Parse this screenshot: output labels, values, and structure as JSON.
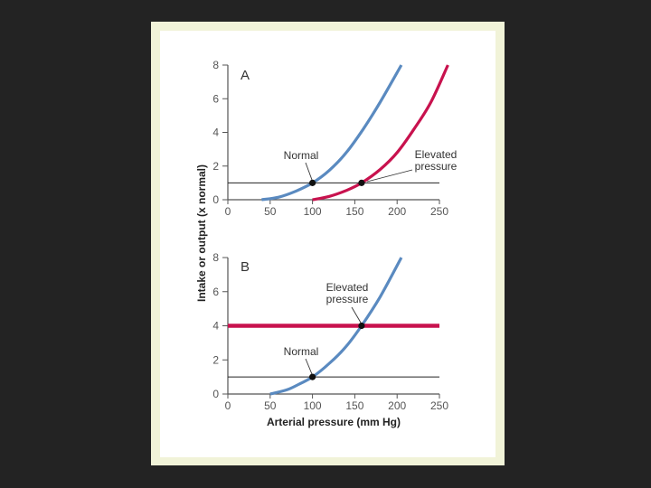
{
  "colors": {
    "slide_background": "#232323",
    "frame": "#f1f3d8",
    "normal_curve": "#5a8ac0",
    "elevated_curve": "#c8124e",
    "axis": "#555555"
  },
  "chart_data": {
    "type": "line",
    "ylabel": "Intake or output (x normal)",
    "xlabel": "Arterial pressure (mm Hg)",
    "panels": [
      {
        "id": "A",
        "label": "A",
        "xlim": [
          0,
          250
        ],
        "ylim": [
          0,
          8
        ],
        "x_ticks": [
          "0",
          "50",
          "100",
          "150",
          "200",
          "250"
        ],
        "y_ticks": [
          "0",
          "2",
          "4",
          "6",
          "8"
        ],
        "series": [
          {
            "name": "Normal output curve",
            "x": [
              40,
              60,
              80,
              100,
              120,
              140,
              160,
              180,
              205
            ],
            "y": [
              0,
              0.15,
              0.5,
              1.0,
              1.75,
              2.8,
              4.2,
              5.8,
              8.0
            ],
            "color": "#5a8ac0"
          },
          {
            "name": "Elevated pressure output curve",
            "x": [
              100,
              120,
              140,
              158,
              180,
              200,
              220,
              240,
              260
            ],
            "y": [
              0,
              0.2,
              0.55,
              1.0,
              1.8,
              2.8,
              4.2,
              5.8,
              8.0
            ],
            "color": "#c8124e"
          },
          {
            "name": "Intake level",
            "x": [
              0,
              250
            ],
            "y": [
              1,
              1
            ],
            "color": "#222222"
          }
        ],
        "points": [
          {
            "name": "normal-equilibrium",
            "x": 100,
            "y": 1
          },
          {
            "name": "elevated-equilibrium",
            "x": 158,
            "y": 1
          }
        ],
        "annotations": [
          {
            "name": "normal",
            "lines": [
              "Normal"
            ]
          },
          {
            "name": "elevated",
            "lines": [
              "Elevated",
              "pressure"
            ]
          }
        ]
      },
      {
        "id": "B",
        "label": "B",
        "xlim": [
          0,
          250
        ],
        "ylim": [
          0,
          8
        ],
        "x_ticks": [
          "0",
          "50",
          "100",
          "150",
          "200",
          "250"
        ],
        "y_ticks": [
          "0",
          "2",
          "4",
          "6",
          "8"
        ],
        "series": [
          {
            "name": "Output curve",
            "x": [
              50,
              70,
              85,
              100,
              120,
              140,
              158,
              180,
              205
            ],
            "y": [
              0,
              0.25,
              0.6,
              1.0,
              1.8,
              2.8,
              4.0,
              5.7,
              8.0
            ],
            "color": "#5a8ac0"
          },
          {
            "name": "Normal intake",
            "x": [
              0,
              250
            ],
            "y": [
              1,
              1
            ],
            "color": "#222222"
          },
          {
            "name": "Elevated intake",
            "x": [
              0,
              250
            ],
            "y": [
              4,
              4
            ],
            "color": "#c8124e"
          }
        ],
        "points": [
          {
            "name": "normal-equilibrium",
            "x": 100,
            "y": 1
          },
          {
            "name": "elevated-equilibrium",
            "x": 158,
            "y": 4
          }
        ],
        "annotations": [
          {
            "name": "elevated",
            "lines": [
              "Elevated",
              "pressure"
            ]
          },
          {
            "name": "normal",
            "lines": [
              "Normal"
            ]
          }
        ]
      }
    ]
  }
}
